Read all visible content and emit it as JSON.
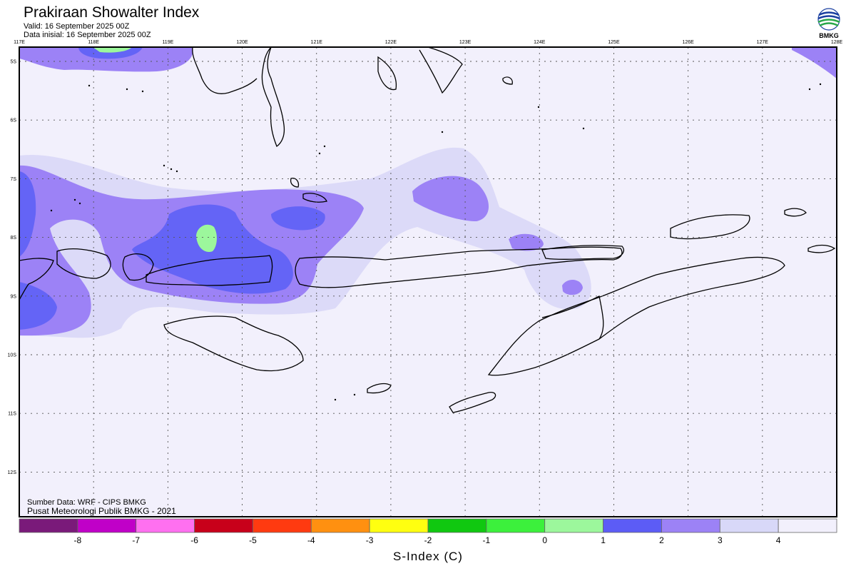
{
  "header": {
    "title": "Prakiraan Showalter Index",
    "valid": "Valid: 16 September 2025 00Z",
    "initial": "Data inisial: 16 September 2025 00Z",
    "logo_text": "BMKG"
  },
  "map": {
    "lon_labels": [
      "117E",
      "118E",
      "119E",
      "120E",
      "121E",
      "122E",
      "123E",
      "124E",
      "125E",
      "126E",
      "127E",
      "128E"
    ],
    "lat_labels": [
      "5S",
      "6S",
      "7S",
      "8S",
      "9S",
      "10S",
      "11S",
      "12S"
    ],
    "lon_range": [
      117,
      128
    ],
    "lat_range": [
      -4.8,
      -12.8
    ],
    "gridlines": true
  },
  "credits": {
    "source": "Sumber Data: WRF - CIPS BMKG",
    "publisher": "Pusat Meteorologi Publik BMKG - 2021"
  },
  "colorbar": {
    "title": "S-Index (C)",
    "tick_labels": [
      "-8",
      "-7",
      "-6",
      "-5",
      "-4",
      "-3",
      "-2",
      "-1",
      "0",
      "1",
      "2",
      "3",
      "4"
    ],
    "colors": [
      "#7a1a7a",
      "#c000c8",
      "#ff70f0",
      "#c8001a",
      "#ff3a10",
      "#ff9010",
      "#ffff10",
      "#10c810",
      "#3cf03c",
      "#9cf79c",
      "#5c5cf6",
      "#9c82f6",
      "#d8d8f8",
      "#f2f0fc"
    ]
  },
  "legend_colors": {
    "background": "#f2f0fc",
    "very_light": "#dcdaf8",
    "light_purple": "#9c82f6",
    "blue": "#6464f6",
    "green": "#9cf79c",
    "land_outline": "#000000"
  }
}
